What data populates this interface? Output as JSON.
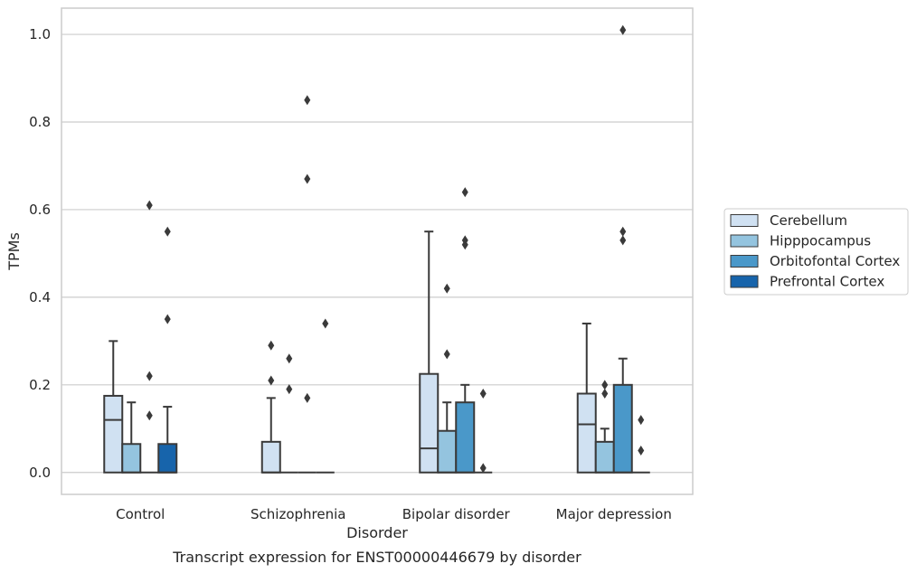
{
  "caption": "Transcript expression for ENST00000446679 by disorder",
  "chart_data": {
    "type": "box",
    "xlabel": "Disorder",
    "ylabel": "TPMs",
    "ylim": [
      -0.05,
      1.06
    ],
    "yticks": [
      0.0,
      0.2,
      0.4,
      0.6,
      0.8,
      1.0
    ],
    "ytick_labels": [
      "0.0",
      "0.2",
      "0.4",
      "0.6",
      "0.8",
      "1.0"
    ],
    "grid": "horizontal",
    "legend_position": "right",
    "categories": [
      "Control",
      "Schizophrenia",
      "Bipolar disorder",
      "Major depression"
    ],
    "series": [
      {
        "name": "Cerebellum",
        "color": "#d0e1f2",
        "boxes": [
          {
            "q1": 0.0,
            "median": 0.12,
            "q3": 0.175,
            "whisker_low": 0.0,
            "whisker_high": 0.3,
            "outliers": []
          },
          {
            "q1": 0.0,
            "median": 0.0,
            "q3": 0.07,
            "whisker_low": 0.0,
            "whisker_high": 0.17,
            "outliers": [
              0.21,
              0.29
            ]
          },
          {
            "q1": 0.0,
            "median": 0.055,
            "q3": 0.225,
            "whisker_low": 0.0,
            "whisker_high": 0.55,
            "outliers": []
          },
          {
            "q1": 0.0,
            "median": 0.11,
            "q3": 0.18,
            "whisker_low": 0.0,
            "whisker_high": 0.34,
            "outliers": []
          }
        ]
      },
      {
        "name": "Hipppocampus",
        "color": "#94c4df",
        "boxes": [
          {
            "q1": 0.0,
            "median": 0.0,
            "q3": 0.065,
            "whisker_low": 0.0,
            "whisker_high": 0.16,
            "outliers": []
          },
          {
            "q1": 0.0,
            "median": 0.0,
            "q3": 0.0,
            "whisker_low": 0.0,
            "whisker_high": 0.0,
            "outliers": [
              0.19,
              0.26
            ]
          },
          {
            "q1": 0.0,
            "median": 0.0,
            "q3": 0.095,
            "whisker_low": 0.0,
            "whisker_high": 0.16,
            "outliers": [
              0.27,
              0.42
            ]
          },
          {
            "q1": 0.0,
            "median": 0.0,
            "q3": 0.07,
            "whisker_low": 0.0,
            "whisker_high": 0.1,
            "outliers": [
              0.18,
              0.2
            ]
          }
        ]
      },
      {
        "name": "Orbitofontal Cortex",
        "color": "#4a98c9",
        "boxes": [
          {
            "q1": 0.0,
            "median": 0.0,
            "q3": 0.0,
            "whisker_low": 0.0,
            "whisker_high": 0.0,
            "outliers": [
              0.13,
              0.22,
              0.61
            ]
          },
          {
            "q1": 0.0,
            "median": 0.0,
            "q3": 0.0,
            "whisker_low": 0.0,
            "whisker_high": 0.0,
            "outliers": [
              0.17,
              0.67,
              0.85
            ]
          },
          {
            "q1": 0.0,
            "median": 0.0,
            "q3": 0.16,
            "whisker_low": 0.0,
            "whisker_high": 0.2,
            "outliers": [
              0.52,
              0.53,
              0.64
            ]
          },
          {
            "q1": 0.0,
            "median": 0.0,
            "q3": 0.2,
            "whisker_low": 0.0,
            "whisker_high": 0.26,
            "outliers": [
              0.53,
              0.55,
              1.01
            ]
          }
        ]
      },
      {
        "name": "Prefrontal Cortex",
        "color": "#1764ab",
        "boxes": [
          {
            "q1": 0.0,
            "median": 0.0,
            "q3": 0.065,
            "whisker_low": 0.0,
            "whisker_high": 0.15,
            "outliers": [
              0.35,
              0.55
            ]
          },
          {
            "q1": 0.0,
            "median": 0.0,
            "q3": 0.0,
            "whisker_low": 0.0,
            "whisker_high": 0.0,
            "outliers": [
              0.34
            ]
          },
          {
            "q1": 0.0,
            "median": 0.0,
            "q3": 0.0,
            "whisker_low": 0.0,
            "whisker_high": 0.0,
            "outliers": [
              0.01,
              0.18
            ]
          },
          {
            "q1": 0.0,
            "median": 0.0,
            "q3": 0.0,
            "whisker_low": 0.0,
            "whisker_high": 0.0,
            "outliers": [
              0.05,
              0.12
            ]
          }
        ]
      }
    ]
  }
}
